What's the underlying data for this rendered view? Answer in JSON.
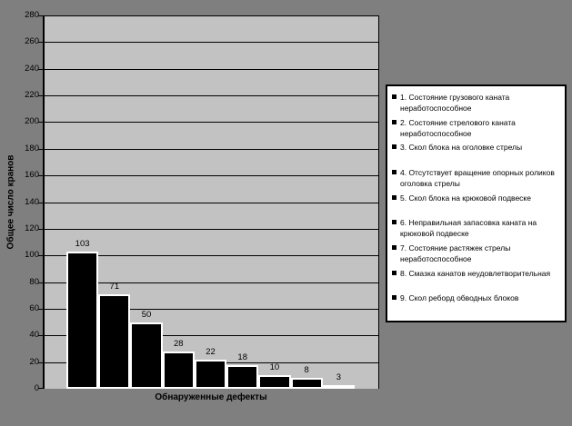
{
  "chart_data": {
    "type": "bar",
    "title": "",
    "xlabel": "Обнаруженные дефекты",
    "ylabel": "Общее число кранов",
    "ylim": [
      0,
      280
    ],
    "ytick_step": 20,
    "grid": true,
    "legend_position": "right",
    "categories": [
      "1",
      "2",
      "3",
      "4",
      "5",
      "6",
      "7",
      "8",
      "9"
    ],
    "values": [
      103,
      71,
      50,
      28,
      22,
      18,
      10,
      8,
      3
    ],
    "value_labels_shown": true,
    "legend": [
      "1. Состояние грузового каната неработоспособное",
      "2. Состояние стрелового каната неработоспособное",
      "3. Скол блока на оголовке стрелы",
      "4. Отсутствует вращение опорных роликов оголовка стрелы",
      "5. Скол блока на крюковой подвеске",
      "6. Неправильная запасовка каната на крюковой подвеске",
      "7. Состояние растяжек стрелы неработоспособное",
      "8. Смазка канатов неудовлетворительная",
      "9. Скол реборд обводных блоков"
    ],
    "colors": {
      "background": "#7F7F7F",
      "plot_background": "#C2C2C2",
      "bar_fill": "#000000",
      "bar_border": "#FFFFFF",
      "gridline": "#000000",
      "axis": "#000000",
      "legend_background": "#FFFFFF",
      "legend_border": "#000000",
      "text": "#000000"
    }
  }
}
